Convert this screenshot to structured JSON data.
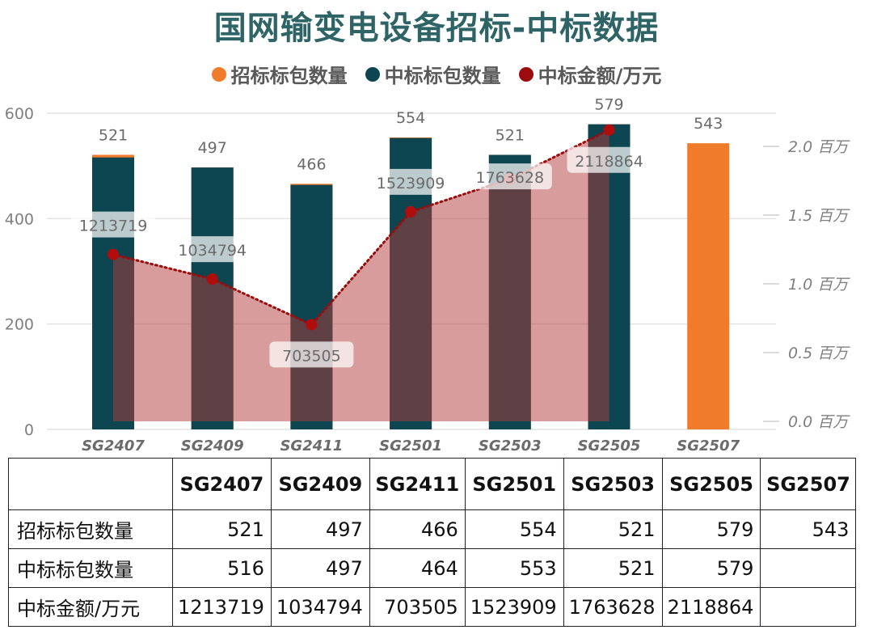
{
  "title": "国网输变电设备招标-中标数据",
  "legend": [
    {
      "name": "招标标包数量",
      "color": "#f07b2a"
    },
    {
      "name": "中标标包数量",
      "color": "#0d4650"
    },
    {
      "name": "中标金额/万元",
      "color": "#9c0c0c"
    }
  ],
  "chart_data": {
    "type": "bar",
    "categories": [
      "SG2407",
      "SG2409",
      "SG2411",
      "SG2501",
      "SG2503",
      "SG2505",
      "SG2507"
    ],
    "series": [
      {
        "name": "招标标包数量",
        "type": "bar",
        "values": [
          521,
          497,
          466,
          554,
          521,
          579,
          543
        ]
      },
      {
        "name": "中标标包数量",
        "type": "bar",
        "values": [
          516,
          497,
          464,
          553,
          521,
          579,
          null
        ]
      },
      {
        "name": "中标金额/万元",
        "type": "area-line",
        "axis": "right",
        "values": [
          1213719,
          1034794,
          703505,
          1523909,
          1763628,
          2118864,
          null
        ]
      }
    ],
    "y_left": {
      "ticks": [
        0,
        200,
        400,
        600
      ],
      "ylim": [
        0,
        600
      ]
    },
    "y_right": {
      "ticks": [
        "0.0 百万",
        "0.5 百万",
        "1.0 百万",
        "1.5 百万",
        "2.0 百万"
      ],
      "ylim": [
        0,
        2.0
      ]
    },
    "bar_labels": [
      "521",
      "497",
      "466",
      "554",
      "521",
      "579",
      "543"
    ],
    "amount_labels": [
      "1213719",
      "1034794",
      "703505",
      "1523909",
      "1763628",
      "2118864"
    ]
  },
  "table": {
    "headers": [
      "",
      "SG2407",
      "SG2409",
      "SG2411",
      "SG2501",
      "SG2503",
      "SG2505",
      "SG2507"
    ],
    "rows": [
      {
        "label": "招标标包数量",
        "cells": [
          "521",
          "497",
          "466",
          "554",
          "521",
          "579",
          "543"
        ]
      },
      {
        "label": "中标标包数量",
        "cells": [
          "516",
          "497",
          "464",
          "553",
          "521",
          "579",
          ""
        ]
      },
      {
        "label": "中标金额/万元",
        "cells": [
          "1213719",
          "1034794",
          "703505",
          "1523909",
          "1763628",
          "2118864",
          ""
        ]
      }
    ]
  }
}
